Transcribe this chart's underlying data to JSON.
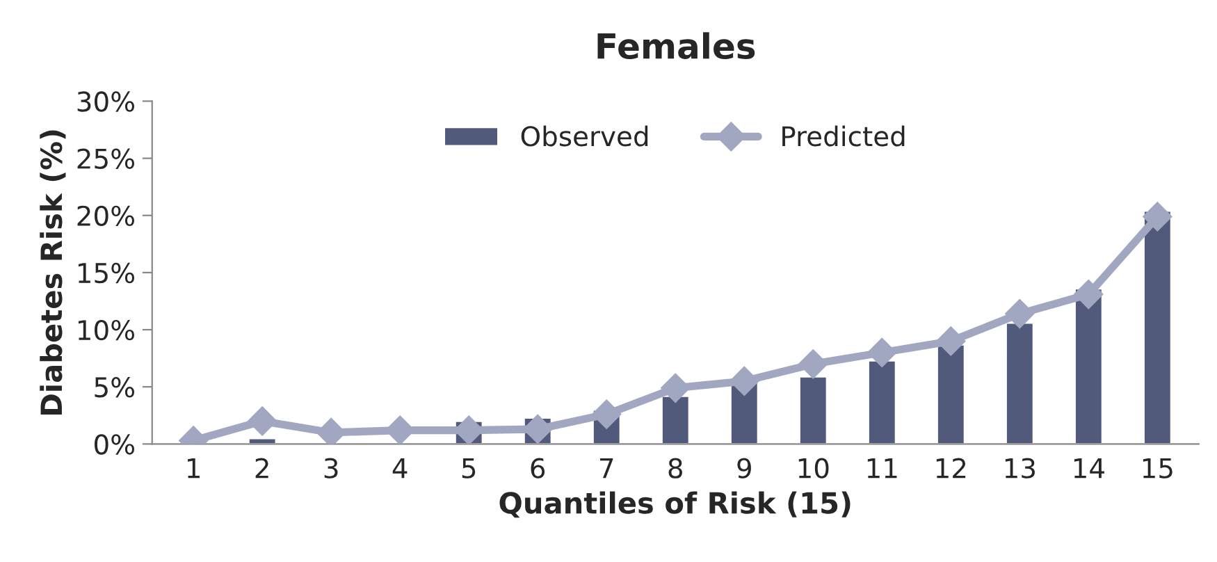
{
  "chart_data": {
    "type": "bar",
    "title": "Females",
    "xlabel": "Quantiles of Risk (15)",
    "ylabel": "Diabetes Risk (%)",
    "categories": [
      "1",
      "2",
      "3",
      "4",
      "5",
      "6",
      "7",
      "8",
      "9",
      "10",
      "11",
      "12",
      "13",
      "14",
      "15"
    ],
    "series": [
      {
        "name": "Observed",
        "color": "#525a7c",
        "values": [
          null,
          0.5,
          null,
          null,
          2.0,
          2.3,
          3.0,
          4.2,
          5.4,
          5.9,
          7.3,
          8.7,
          10.6,
          13.6,
          20.4
        ]
      },
      {
        "name": "Predicted",
        "type": "line",
        "color": "#a2a7c1",
        "marker": "diamond",
        "values": [
          0.3,
          2.0,
          1.0,
          1.2,
          1.2,
          1.3,
          2.6,
          4.9,
          5.5,
          7.0,
          8.0,
          9.0,
          11.4,
          13.1,
          19.9
        ]
      }
    ],
    "ylim": [
      0,
      30
    ],
    "yticks": [
      {
        "value": 0,
        "label": "0%"
      },
      {
        "value": 5,
        "label": "5%"
      },
      {
        "value": 10,
        "label": "10%"
      },
      {
        "value": 15,
        "label": "15%"
      },
      {
        "value": 20,
        "label": "20%"
      },
      {
        "value": 25,
        "label": "25%"
      },
      {
        "value": 30,
        "label": "30%"
      }
    ],
    "legend": "top",
    "grid": false
  }
}
